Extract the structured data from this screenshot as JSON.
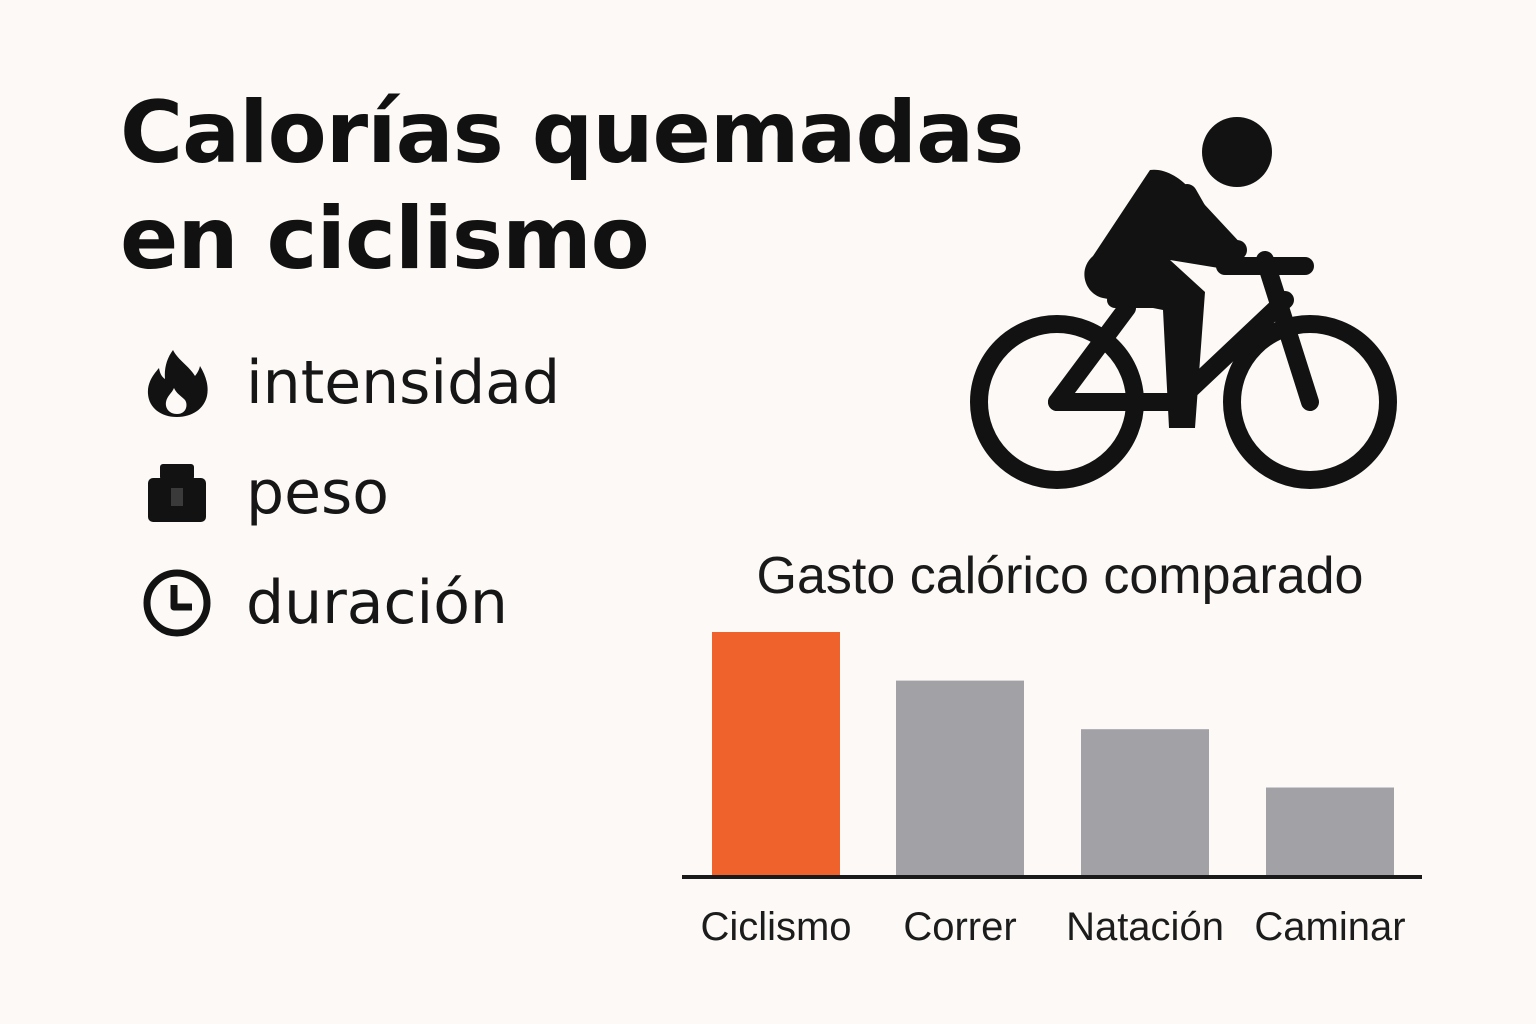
{
  "title": {
    "line1": "Calorías quemadas",
    "line2": "en ciclismo"
  },
  "factors": [
    {
      "label": "intensidad",
      "icon": "flame-icon"
    },
    {
      "label": "peso",
      "icon": "weight-icon"
    },
    {
      "label": "duración",
      "icon": "clock-icon"
    }
  ],
  "illustration": {
    "icon": "cyclist-icon"
  },
  "chart": {
    "title": "Gasto calórico comparado"
  },
  "colors": {
    "highlight": "#f0622c",
    "bar": "#a2a1a6",
    "text": "#111111",
    "background": "#fcf9f6"
  },
  "chart_data": {
    "type": "bar",
    "title": "Gasto calórico comparado",
    "categories": [
      "Ciclismo",
      "Correr",
      "Natación",
      "Caminar"
    ],
    "values": [
      100,
      80,
      60,
      36
    ],
    "highlight": "Ciclismo",
    "xlabel": "",
    "ylabel": "",
    "ylim": [
      0,
      100
    ],
    "grid": false,
    "legend": "none",
    "axes": {
      "y_visible": false,
      "baseline": true
    }
  }
}
